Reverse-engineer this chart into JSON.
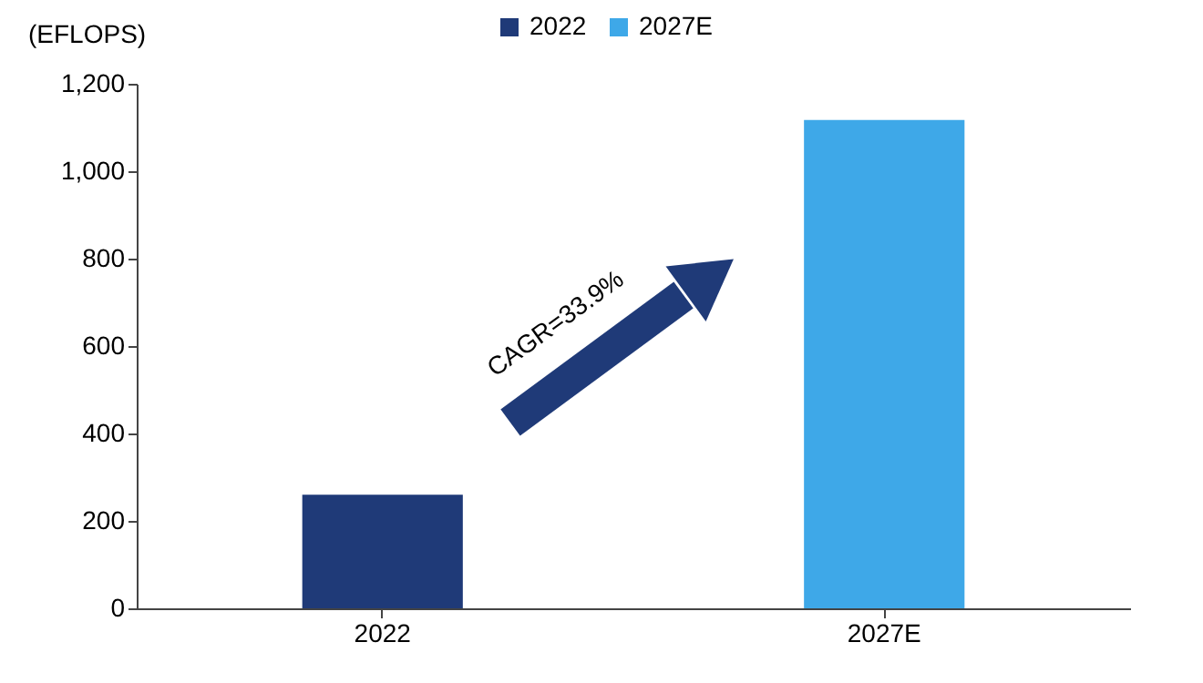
{
  "chart_data": {
    "type": "bar",
    "ylabel": "(EFLOPS)",
    "categories": [
      "2022",
      "2027E"
    ],
    "series": [
      {
        "name": "2022",
        "color": "#1f3a78",
        "values": [
          260,
          null
        ]
      },
      {
        "name": "2027E",
        "color": "#3ea8e8",
        "values": [
          null,
          1117
        ]
      }
    ],
    "ylim": [
      0,
      1200
    ],
    "yticks": [
      0,
      200,
      400,
      600,
      800,
      {
        "value": 1000,
        "label": "1,000"
      },
      {
        "value": 1200,
        "label": "1,200"
      }
    ],
    "grid": false,
    "legend": "top",
    "annotations": [
      "CAGR=33.9%"
    ]
  }
}
